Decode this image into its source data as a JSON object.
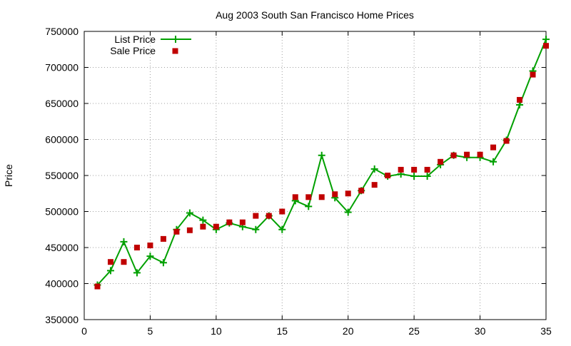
{
  "chart_data": {
    "type": "line",
    "title": "Aug 2003 South San Francisco Home Prices",
    "xlabel": "",
    "ylabel": "Price",
    "xlim": [
      0,
      35
    ],
    "ylim": [
      350000,
      750000
    ],
    "xticks": [
      0,
      5,
      10,
      15,
      20,
      25,
      30,
      35
    ],
    "yticks": [
      350000,
      400000,
      450000,
      500000,
      550000,
      600000,
      650000,
      700000,
      750000
    ],
    "grid": true,
    "legend_position": "top-left",
    "series": [
      {
        "name": "List Price",
        "style": "lines-points",
        "color": "#00a000",
        "marker": "plus",
        "x": [
          1,
          2,
          3,
          4,
          5,
          6,
          7,
          8,
          9,
          10,
          11,
          12,
          13,
          14,
          15,
          16,
          17,
          18,
          19,
          20,
          21,
          22,
          23,
          24,
          25,
          26,
          27,
          28,
          29,
          30,
          31,
          32,
          33,
          34,
          35
        ],
        "y": [
          398000,
          418000,
          458000,
          415000,
          438000,
          429000,
          475000,
          498000,
          488000,
          475000,
          484000,
          479000,
          475000,
          494000,
          475000,
          515000,
          507000,
          578000,
          519000,
          499000,
          529000,
          559000,
          549000,
          552000,
          549000,
          549000,
          565000,
          578000,
          575000,
          575000,
          569000,
          599000,
          648000,
          695000,
          739000
        ]
      },
      {
        "name": "Sale Price",
        "style": "points",
        "color": "#c00000",
        "marker": "square",
        "x": [
          1,
          2,
          3,
          4,
          5,
          6,
          7,
          8,
          9,
          10,
          11,
          12,
          13,
          14,
          15,
          16,
          17,
          18,
          19,
          20,
          21,
          22,
          23,
          24,
          25,
          26,
          27,
          28,
          29,
          30,
          31,
          32,
          33,
          34,
          35
        ],
        "y": [
          396000,
          430000,
          430000,
          450000,
          453000,
          462000,
          472000,
          474000,
          479000,
          479000,
          485000,
          485000,
          494000,
          494000,
          500000,
          520000,
          520000,
          520000,
          524000,
          525000,
          529000,
          537000,
          550000,
          558000,
          558000,
          558000,
          569000,
          578000,
          579000,
          579000,
          589000,
          598000,
          655000,
          690000,
          730000
        ]
      }
    ]
  }
}
